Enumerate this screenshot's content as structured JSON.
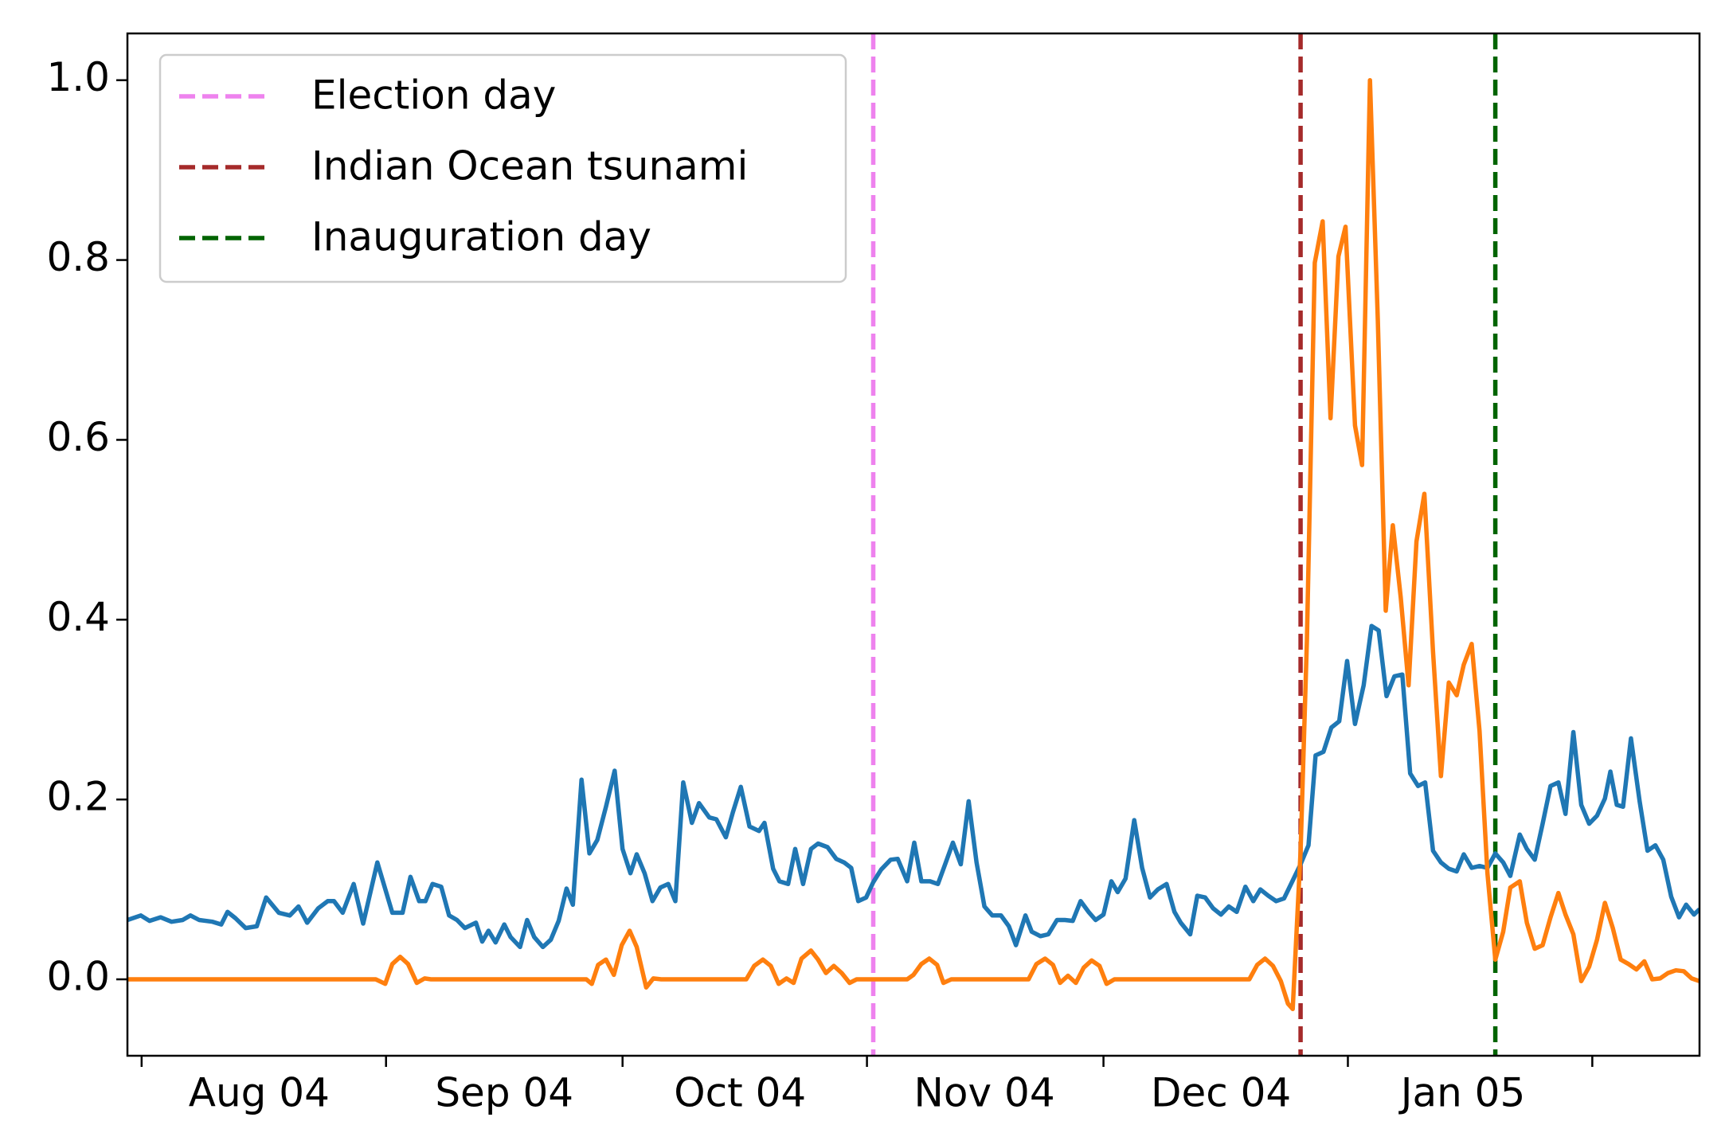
{
  "chart_data": {
    "type": "line",
    "xlim": [
      -1.8,
      197.6
    ],
    "ylim": [
      -0.085,
      1.052
    ],
    "xticks": [
      0,
      31,
      61,
      92,
      122,
      153,
      184
    ],
    "xlabels": [
      {
        "value": 14.9,
        "label": "Aug 04"
      },
      {
        "value": 46,
        "label": "Sep 04"
      },
      {
        "value": 75.9,
        "label": "Oct 04"
      },
      {
        "value": 106.9,
        "label": "Nov 04"
      },
      {
        "value": 136.9,
        "label": "Dec 04"
      },
      {
        "value": 167.6,
        "label": "Jan 05"
      }
    ],
    "yticks": [
      {
        "value": 0,
        "label": "0.0"
      },
      0.2,
      0.4,
      0.6,
      0.8,
      {
        "value": 1,
        "label": "1.0"
      }
    ],
    "legend": "upper left",
    "vlines": [
      {
        "name": "Election day",
        "x": 92.8,
        "color": "#ee82ee"
      },
      {
        "name": "Indian Ocean tsunami",
        "x": 147,
        "color": "#a52a2a"
      },
      {
        "name": "Inauguration day",
        "x": 171.7,
        "color": "#006400"
      }
    ],
    "series": [
      {
        "color": "#1f77b4",
        "x": [
          -1.8,
          -0.1,
          1.0,
          2.4,
          3.8,
          5.2,
          6.2,
          7.3,
          9.0,
          10.1,
          10.9,
          11.9,
          13.2,
          14.6,
          15.8,
          17.4,
          18.8,
          19.9,
          21.0,
          22.4,
          23.6,
          24.4,
          25.5,
          26.9,
          28.1,
          29.9,
          31.8,
          33.1,
          34.1,
          35.2,
          36.0,
          36.9,
          38.0,
          39.0,
          40.0,
          41.0,
          42.4,
          43.2,
          44.0,
          44.9,
          46.0,
          46.8,
          48.0,
          48.9,
          49.8,
          50.9,
          51.9,
          52.9,
          53.9,
          54.7,
          55.8,
          56.8,
          57.8,
          58.9,
          60.0,
          61.0,
          62.0,
          62.8,
          63.8,
          64.8,
          65.8,
          66.8,
          67.7,
          68.7,
          69.8,
          70.7,
          72.0,
          72.9,
          74.1,
          75.0,
          76.0,
          77.1,
          78.3,
          79.0,
          80.1,
          80.9,
          82.0,
          82.9,
          83.9,
          84.9,
          85.8,
          87.0,
          88.1,
          89.1,
          90.0,
          90.9,
          91.9,
          92.8,
          93.8,
          95.0,
          95.9,
          97.1,
          98.0,
          98.9,
          100.0,
          101.0,
          102.0,
          102.9,
          103.9,
          104.9,
          105.9,
          106.9,
          107.9,
          109.0,
          110.0,
          110.9,
          112.1,
          112.9,
          114.0,
          115.0,
          116.1,
          117.1,
          118.1,
          119.1,
          120.1,
          121.0,
          122.0,
          123.0,
          123.8,
          124.8,
          125.9,
          126.9,
          127.9,
          128.9,
          130.0,
          131.0,
          131.8,
          133.0,
          133.9,
          134.9,
          135.9,
          136.9,
          137.9,
          138.9,
          140.0,
          141.0,
          141.9,
          142.9,
          143.9,
          144.9,
          145.9,
          147.0,
          148.0,
          148.9,
          149.9,
          150.9,
          151.9,
          152.9,
          153.9,
          155.0,
          156.0,
          156.9,
          157.9,
          158.9,
          159.9,
          160.9,
          161.9,
          162.8,
          163.8,
          164.8,
          165.8,
          166.8,
          167.7,
          168.7,
          169.7,
          170.7,
          171.7,
          172.7,
          173.6,
          174.8,
          175.7,
          176.7,
          177.7,
          178.7,
          179.7,
          180.6,
          181.6,
          182.6,
          183.6,
          184.6,
          185.6,
          186.3,
          187.1,
          187.9,
          188.9,
          190.0,
          191.0,
          192.0,
          193.0,
          194.0,
          195.0,
          195.9,
          196.9,
          197.6
        ],
        "values": [
          0.066,
          0.071,
          0.065,
          0.069,
          0.064,
          0.066,
          0.071,
          0.066,
          0.064,
          0.061,
          0.075,
          0.068,
          0.057,
          0.059,
          0.091,
          0.074,
          0.071,
          0.081,
          0.063,
          0.079,
          0.087,
          0.087,
          0.074,
          0.106,
          0.062,
          0.13,
          0.074,
          0.074,
          0.114,
          0.087,
          0.087,
          0.106,
          0.103,
          0.071,
          0.066,
          0.057,
          0.063,
          0.042,
          0.054,
          0.041,
          0.061,
          0.047,
          0.036,
          0.066,
          0.047,
          0.036,
          0.044,
          0.065,
          0.101,
          0.083,
          0.222,
          0.14,
          0.155,
          0.192,
          0.232,
          0.145,
          0.118,
          0.139,
          0.118,
          0.087,
          0.102,
          0.106,
          0.087,
          0.219,
          0.174,
          0.196,
          0.18,
          0.178,
          0.158,
          0.186,
          0.214,
          0.17,
          0.165,
          0.174,
          0.123,
          0.109,
          0.106,
          0.145,
          0.106,
          0.145,
          0.151,
          0.147,
          0.134,
          0.13,
          0.124,
          0.087,
          0.091,
          0.108,
          0.122,
          0.133,
          0.134,
          0.109,
          0.152,
          0.109,
          0.109,
          0.106,
          0.13,
          0.152,
          0.128,
          0.198,
          0.13,
          0.081,
          0.071,
          0.071,
          0.059,
          0.038,
          0.071,
          0.053,
          0.048,
          0.05,
          0.066,
          0.066,
          0.065,
          0.087,
          0.075,
          0.066,
          0.072,
          0.109,
          0.097,
          0.112,
          0.177,
          0.124,
          0.091,
          0.1,
          0.106,
          0.075,
          0.063,
          0.05,
          0.093,
          0.091,
          0.079,
          0.072,
          0.081,
          0.075,
          0.103,
          0.087,
          0.1,
          0.093,
          0.087,
          0.09,
          0.108,
          0.128,
          0.149,
          0.249,
          0.253,
          0.28,
          0.287,
          0.354,
          0.284,
          0.327,
          0.393,
          0.388,
          0.315,
          0.337,
          0.339,
          0.229,
          0.215,
          0.219,
          0.143,
          0.13,
          0.123,
          0.12,
          0.139,
          0.124,
          0.126,
          0.124,
          0.14,
          0.13,
          0.115,
          0.161,
          0.145,
          0.133,
          0.173,
          0.215,
          0.219,
          0.184,
          0.275,
          0.194,
          0.173,
          0.182,
          0.201,
          0.231,
          0.194,
          0.192,
          0.268,
          0.198,
          0.143,
          0.149,
          0.133,
          0.092,
          0.069,
          0.083,
          0.072,
          0.078
        ]
      },
      {
        "color": "#ff7f0e",
        "x": [
          -1.8,
          29.7,
          30.9,
          31.8,
          32.8,
          33.8,
          34.9,
          35.9,
          36.7,
          56.4,
          57.1,
          57.9,
          58.9,
          59.9,
          60.9,
          61.9,
          62.8,
          64.0,
          64.9,
          65.9,
          76.7,
          77.7,
          78.8,
          79.8,
          80.8,
          81.8,
          82.7,
          83.7,
          84.9,
          85.8,
          86.8,
          87.8,
          88.8,
          89.8,
          90.7,
          97.1,
          97.9,
          98.9,
          99.9,
          100.9,
          101.7,
          102.7,
          112.5,
          113.5,
          114.6,
          115.6,
          116.5,
          117.5,
          118.5,
          119.5,
          120.5,
          121.5,
          122.4,
          123.4,
          140.5,
          141.5,
          142.5,
          143.5,
          144.5,
          145.4,
          146.0,
          147.0,
          147.8,
          148.8,
          149.8,
          150.8,
          151.8,
          152.7,
          153.9,
          154.8,
          155.8,
          156.8,
          157.8,
          158.7,
          159.7,
          160.7,
          161.7,
          162.7,
          163.8,
          164.8,
          165.8,
          166.8,
          167.7,
          168.7,
          169.7,
          170.7,
          171.7,
          172.7,
          173.6,
          174.8,
          175.7,
          176.7,
          177.7,
          178.7,
          179.7,
          180.6,
          181.6,
          182.6,
          183.6,
          184.6,
          185.6,
          186.6,
          187.6,
          188.6,
          189.6,
          190.6,
          191.6,
          192.6,
          193.6,
          194.6,
          195.6,
          196.6,
          197.6
        ],
        "values": [
          0,
          0,
          -0.005,
          0.017,
          0.025,
          0.017,
          -0.004,
          0.001,
          0,
          0,
          -0.005,
          0.016,
          0.022,
          0.005,
          0.038,
          0.054,
          0.036,
          -0.009,
          0.001,
          0,
          0,
          0.015,
          0.022,
          0.015,
          -0.005,
          0.001,
          -0.004,
          0.023,
          0.032,
          0.022,
          0.007,
          0.015,
          0.007,
          -0.004,
          0,
          0,
          0.005,
          0.017,
          0.023,
          0.016,
          -0.004,
          0,
          0,
          0.017,
          0.023,
          0.016,
          -0.004,
          0.004,
          -0.004,
          0.013,
          0.021,
          0.015,
          -0.005,
          0,
          0,
          0.016,
          0.023,
          0.015,
          -0.002,
          -0.027,
          -0.033,
          0.143,
          0.376,
          0.797,
          0.843,
          0.624,
          0.804,
          0.837,
          0.616,
          0.572,
          1.0,
          0.732,
          0.41,
          0.505,
          0.425,
          0.327,
          0.487,
          0.54,
          0.364,
          0.226,
          0.33,
          0.316,
          0.35,
          0.373,
          0.276,
          0.118,
          0.022,
          0.053,
          0.102,
          0.109,
          0.063,
          0.034,
          0.038,
          0.069,
          0.096,
          0.072,
          0.05,
          -0.002,
          0.014,
          0.044,
          0.085,
          0.057,
          0.022,
          0.017,
          0.011,
          0.02,
          0,
          0.001,
          0.007,
          0.01,
          0.009,
          0.001,
          -0.002
        ]
      }
    ]
  }
}
